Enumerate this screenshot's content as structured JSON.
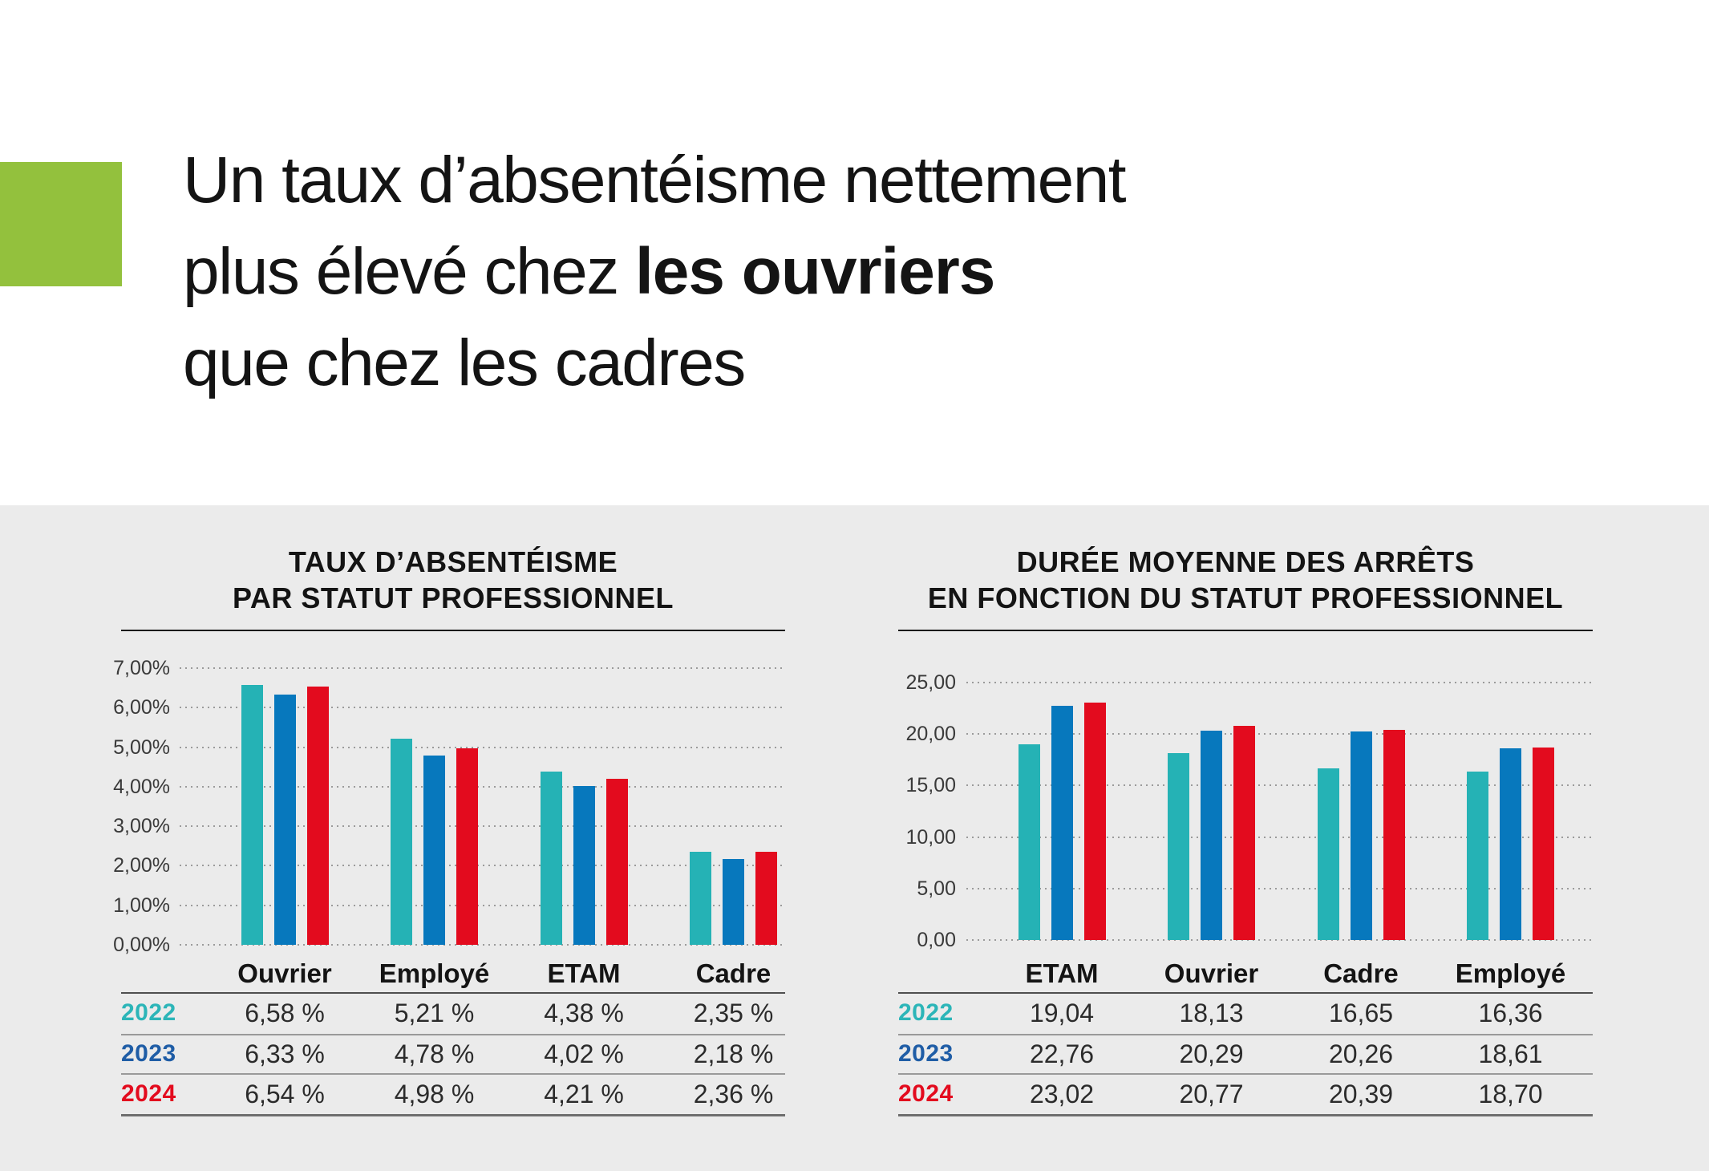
{
  "page": {
    "background": "#ffffff",
    "section_background": "#ebebeb",
    "accent_green": "#93c13d",
    "grid_dot_color": "#9b9b9b"
  },
  "title": {
    "line1": "Un taux d’absentéisme nettement",
    "line2_normal": "plus élevé chez ",
    "line2_bold": "les ouvriers",
    "line3": "que chez les cadres"
  },
  "chart_data": [
    {
      "type": "bar",
      "title_line1": "TAUX D’ABSENTÉISME",
      "title_line2": "PAR STATUT PROFESSIONNEL",
      "categories": [
        "Ouvrier",
        "Employé",
        "ETAM",
        "Cadre"
      ],
      "series": [
        {
          "name": "2022",
          "color": "#25b2b5",
          "label_color": "#2cb5b8",
          "values": [
            6.58,
            5.21,
            4.38,
            2.35
          ],
          "cells": [
            "6,58 %",
            "5,21 %",
            "4,38 %",
            "2,35 %"
          ]
        },
        {
          "name": "2023",
          "color": "#0778bd",
          "label_color": "#1f5da6",
          "values": [
            6.33,
            4.78,
            4.02,
            2.18
          ],
          "cells": [
            "6,33 %",
            "4,78 %",
            "4,02 %",
            "2,18 %"
          ]
        },
        {
          "name": "2024",
          "color": "#e30b1e",
          "label_color": "#e30b1e",
          "values": [
            6.54,
            4.98,
            4.21,
            2.36
          ],
          "cells": [
            "6,54 %",
            "4,98 %",
            "4,21 %",
            "2,36 %"
          ]
        }
      ],
      "ylabel": "",
      "xlabel": "",
      "ylim": [
        0,
        7
      ],
      "yticks": [
        "7,00%",
        "6,00%",
        "5,00%",
        "4,00%",
        "3,00%",
        "2,00%",
        "1,00%",
        "0,00%"
      ],
      "grid": "dotted horizontal",
      "legend_position": "table-rows"
    },
    {
      "type": "bar",
      "title_line1": "DURÉE MOYENNE DES ARRÊTS",
      "title_line2": "EN FONCTION DU STATUT PROFESSIONNEL",
      "categories": [
        "ETAM",
        "Ouvrier",
        "Cadre",
        "Employé"
      ],
      "series": [
        {
          "name": "2022",
          "color": "#25b2b5",
          "label_color": "#2cb5b8",
          "values": [
            19.04,
            18.13,
            16.65,
            16.36
          ],
          "cells": [
            "19,04",
            "18,13",
            "16,65",
            "16,36"
          ]
        },
        {
          "name": "2023",
          "color": "#0778bd",
          "label_color": "#1f5da6",
          "values": [
            22.76,
            20.29,
            20.26,
            18.61
          ],
          "cells": [
            "22,76",
            "20,29",
            "20,26",
            "18,61"
          ]
        },
        {
          "name": "2024",
          "color": "#e30b1e",
          "label_color": "#e30b1e",
          "values": [
            23.02,
            20.77,
            20.39,
            18.7
          ],
          "cells": [
            "23,02",
            "20,77",
            "20,39",
            "18,70"
          ]
        }
      ],
      "ylabel": "",
      "xlabel": "",
      "ylim": [
        0,
        25
      ],
      "yticks": [
        "25,00",
        "20,00",
        "15,00",
        "10,00",
        "5,00",
        "0,00"
      ],
      "grid": "dotted horizontal",
      "legend_position": "table-rows"
    }
  ]
}
